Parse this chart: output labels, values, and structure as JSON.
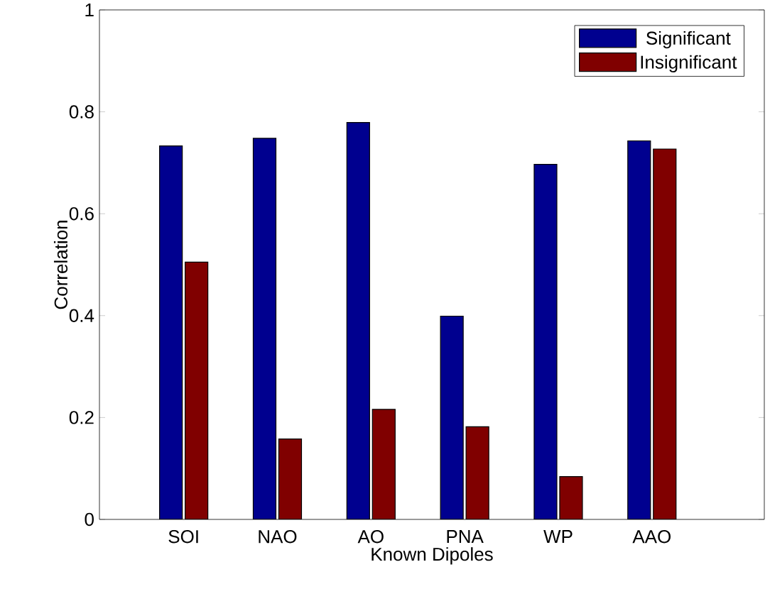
{
  "chart_data": {
    "type": "bar",
    "xlabel": "Known Dipoles",
    "ylabel": "Correlation",
    "categories": [
      "SOI",
      "NAO",
      "AO",
      "PNA",
      "WP",
      "AAO"
    ],
    "series": [
      {
        "name": "Significant",
        "color": "#00008f",
        "values": [
          0.733,
          0.748,
          0.779,
          0.399,
          0.697,
          0.743
        ]
      },
      {
        "name": "Insignificant",
        "color": "#800000",
        "values": [
          0.505,
          0.158,
          0.216,
          0.182,
          0.084,
          0.727
        ]
      }
    ],
    "ylim": [
      0,
      1
    ],
    "yticks": [
      0,
      0.2,
      0.4,
      0.6,
      0.8,
      1
    ],
    "grid": false,
    "legend": "top right"
  }
}
